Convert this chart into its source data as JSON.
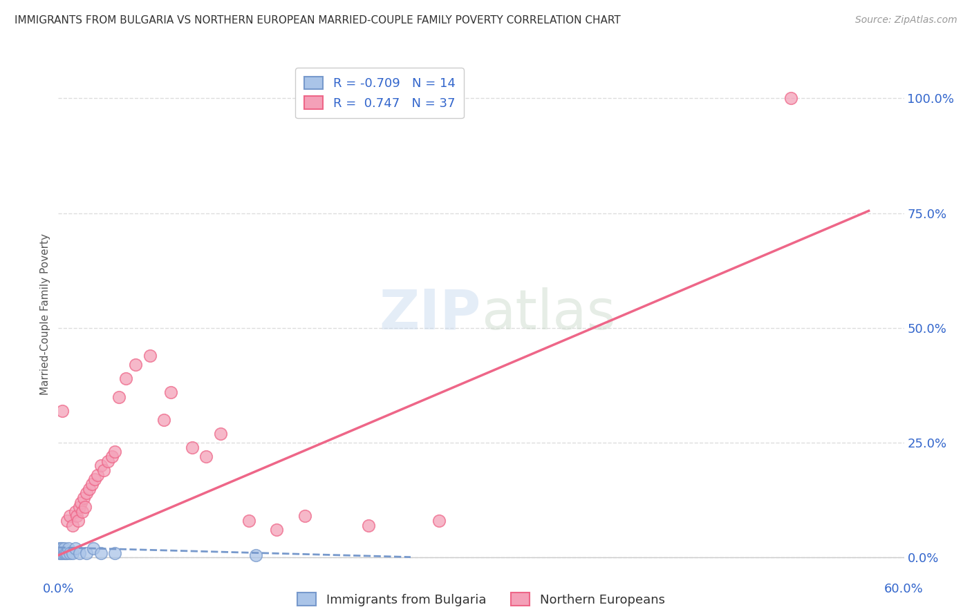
{
  "title": "IMMIGRANTS FROM BULGARIA VS NORTHERN EUROPEAN MARRIED-COUPLE FAMILY POVERTY CORRELATION CHART",
  "source": "Source: ZipAtlas.com",
  "ylabel": "Married-Couple Family Poverty",
  "xlim": [
    0.0,
    0.6
  ],
  "ylim": [
    -0.02,
    1.08
  ],
  "plot_ylim": [
    0.0,
    1.0
  ],
  "xticks": [
    0.0,
    0.1,
    0.2,
    0.3,
    0.4,
    0.5,
    0.6
  ],
  "xticklabels": [
    "0.0%",
    "",
    "",
    "",
    "",
    "",
    "60.0%"
  ],
  "ytick_labels_right": [
    "100.0%",
    "75.0%",
    "50.0%",
    "25.0%",
    "0.0%"
  ],
  "ytick_vals_right": [
    1.0,
    0.75,
    0.5,
    0.25,
    0.0
  ],
  "grid_color": "#dddddd",
  "background_color": "#ffffff",
  "blue_color": "#7799cc",
  "blue_fill": "#aac4e8",
  "pink_color": "#ee6688",
  "pink_fill": "#f4a0b8",
  "blue_scatter_x": [
    0.001,
    0.001,
    0.002,
    0.002,
    0.003,
    0.003,
    0.004,
    0.004,
    0.005,
    0.006,
    0.007,
    0.008,
    0.01,
    0.012,
    0.015,
    0.02,
    0.025,
    0.03,
    0.04,
    0.14
  ],
  "blue_scatter_y": [
    0.01,
    0.02,
    0.01,
    0.02,
    0.01,
    0.02,
    0.01,
    0.02,
    0.01,
    0.01,
    0.02,
    0.01,
    0.01,
    0.02,
    0.01,
    0.01,
    0.02,
    0.01,
    0.01,
    0.005
  ],
  "pink_scatter_x": [
    0.003,
    0.006,
    0.008,
    0.01,
    0.012,
    0.013,
    0.014,
    0.015,
    0.016,
    0.017,
    0.018,
    0.019,
    0.02,
    0.022,
    0.024,
    0.026,
    0.028,
    0.03,
    0.032,
    0.035,
    0.038,
    0.04,
    0.043,
    0.048,
    0.055,
    0.065,
    0.075,
    0.08,
    0.095,
    0.105,
    0.115,
    0.135,
    0.155,
    0.175,
    0.22,
    0.27,
    0.52
  ],
  "pink_scatter_y": [
    0.32,
    0.08,
    0.09,
    0.07,
    0.1,
    0.09,
    0.08,
    0.11,
    0.12,
    0.1,
    0.13,
    0.11,
    0.14,
    0.15,
    0.16,
    0.17,
    0.18,
    0.2,
    0.19,
    0.21,
    0.22,
    0.23,
    0.35,
    0.39,
    0.42,
    0.44,
    0.3,
    0.36,
    0.24,
    0.22,
    0.27,
    0.08,
    0.06,
    0.09,
    0.07,
    0.08,
    1.0
  ],
  "blue_line_x": [
    0.0,
    0.25
  ],
  "blue_line_y": [
    0.022,
    0.001
  ],
  "pink_line_x": [
    0.0,
    0.575
  ],
  "pink_line_y": [
    0.005,
    0.755
  ]
}
